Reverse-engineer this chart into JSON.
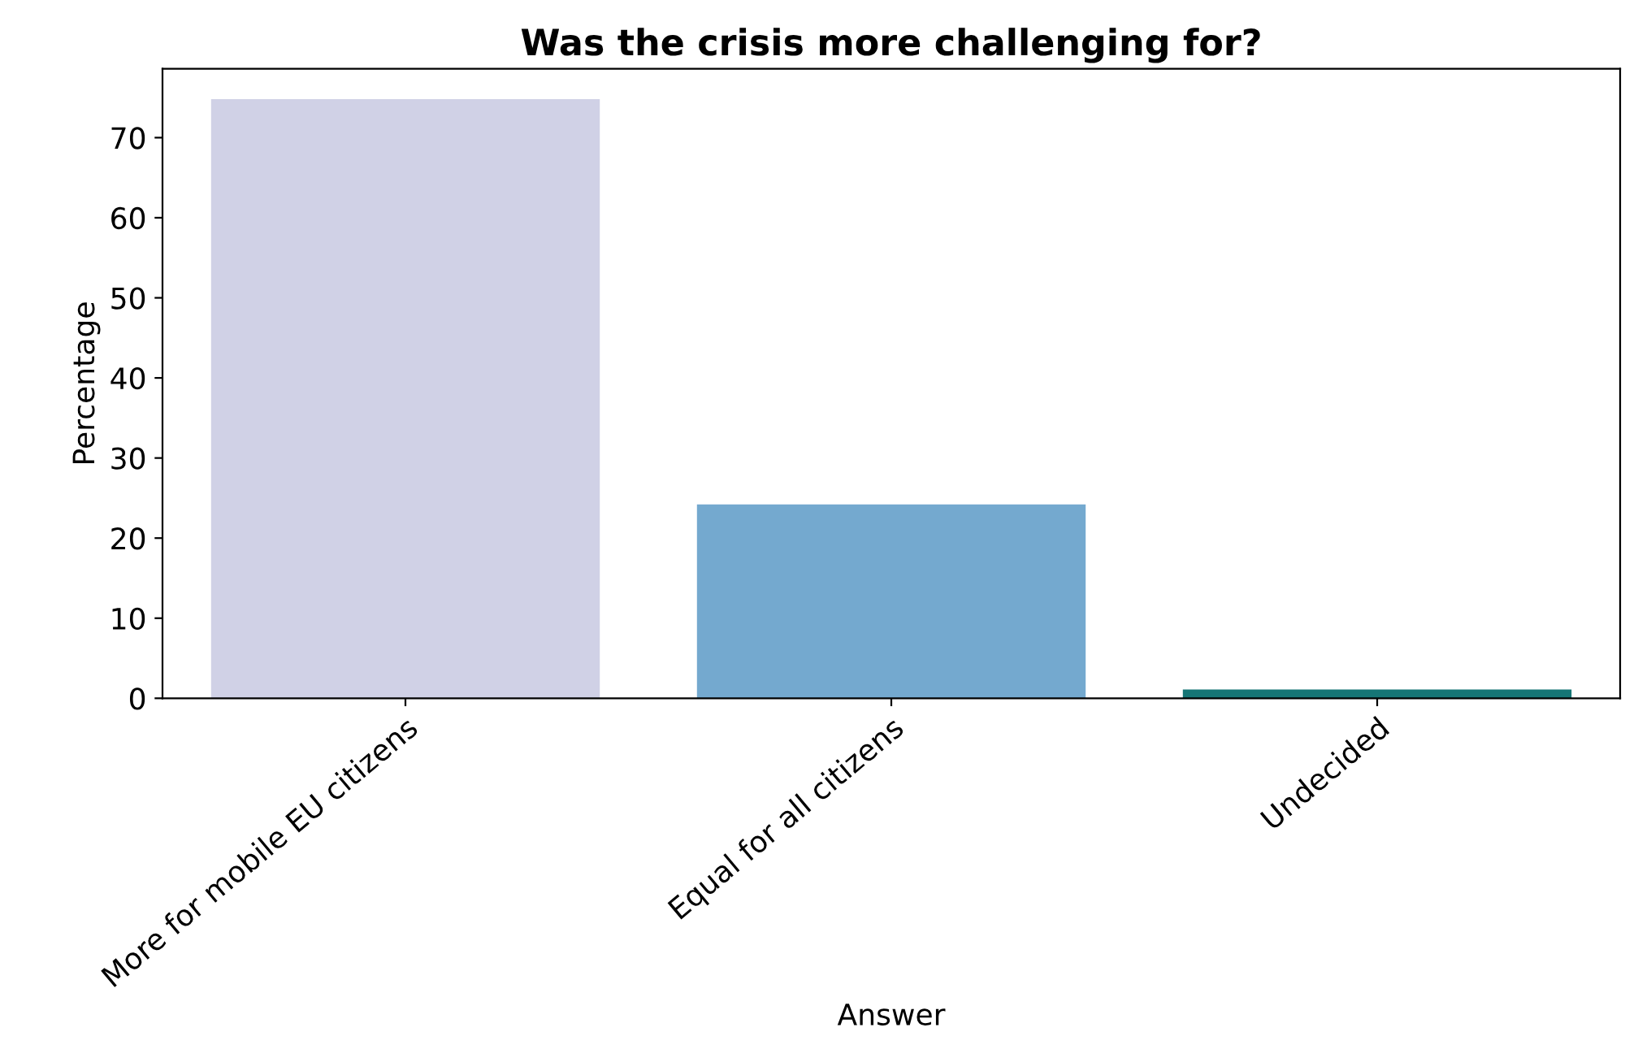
{
  "chart_data": {
    "type": "bar",
    "title": "Was the crisis more challenging for?",
    "xlabel": "Answer",
    "ylabel": "Percentage",
    "categories": [
      "More for mobile EU citizens",
      "Equal for all citizens",
      "Undecided"
    ],
    "values": [
      74.8,
      24.2,
      1.1
    ],
    "colors": [
      "#d0d1e6",
      "#74a9cf",
      "#167676"
    ],
    "ylim": [
      0,
      78.6
    ],
    "yticks": [
      0,
      10,
      20,
      30,
      40,
      50,
      60,
      70
    ],
    "grid": false,
    "legend": false
  }
}
